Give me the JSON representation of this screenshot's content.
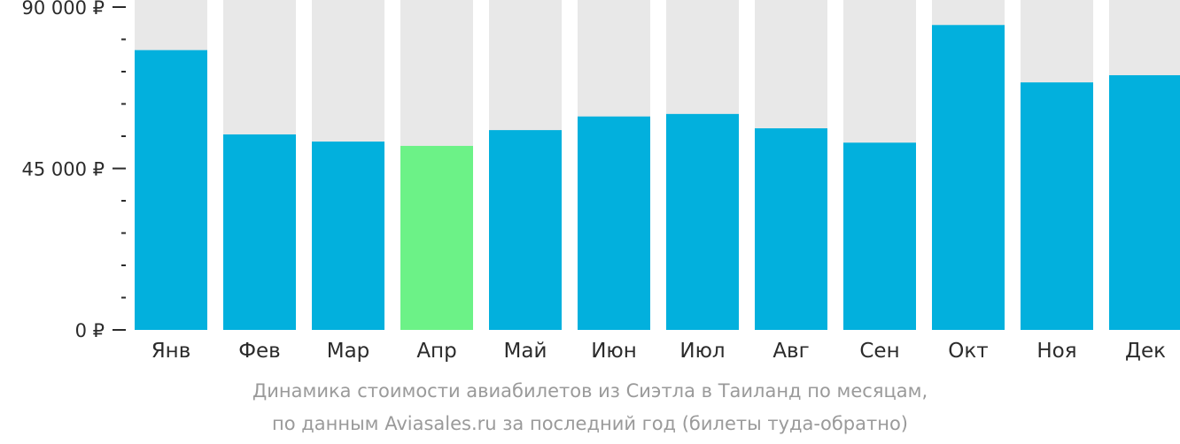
{
  "chart_data": {
    "type": "bar",
    "categories": [
      "Янв",
      "Фев",
      "Мар",
      "Апр",
      "Май",
      "Июн",
      "Июл",
      "Авг",
      "Сен",
      "Окт",
      "Ноя",
      "Дек"
    ],
    "values": [
      78000,
      54500,
      52500,
      51300,
      55700,
      59500,
      60200,
      56200,
      52200,
      85000,
      69000,
      71000
    ],
    "ylim": [
      0,
      90000
    ],
    "yticks": [
      {
        "value": 0,
        "label": "0 ₽"
      },
      {
        "value": 45000,
        "label": "45 000 ₽"
      },
      {
        "value": 90000,
        "label": "90 000 ₽"
      }
    ],
    "minor_tick_step": 9000,
    "highlight_index": 3,
    "colors": {
      "bar": "#02b0dd",
      "highlight": "#6cf287",
      "background_bar": "#e8e8e8",
      "axis": "#2b2b2b"
    }
  },
  "caption": {
    "line1": "Динамика стоимости авиабилетов из Сиэтла в Таиланд по месяцам,",
    "line2": "по данным Aviasales.ru за последний год (билеты туда-обратно)"
  }
}
